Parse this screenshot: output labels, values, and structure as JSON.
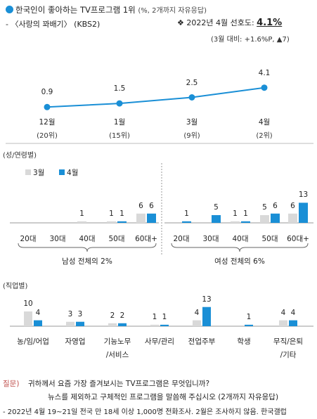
{
  "header": {
    "title": "한국인이 좋아하는 TV프로그램 1위",
    "title_note": "(%, 2개까지 자유응답)",
    "subtitle": "- 〈사랑의 꽈배기〉 (KBS2)",
    "pref_label": "❖ 2022년 4월 선호도:",
    "pref_value": "4.1%",
    "change_note": "(3월 대비: +1.6%P, ▲7)"
  },
  "chart_data": [
    {
      "type": "line",
      "categories": [
        "12월",
        "1월",
        "3월",
        "4월"
      ],
      "category_sub": [
        "(20위)",
        "(15위)",
        "(9위)",
        "(2위)"
      ],
      "values": [
        0.9,
        1.5,
        2.5,
        4.1
      ],
      "color": "#1a8fd6"
    },
    {
      "type": "bar",
      "section_label": "(성/연령별)",
      "series": [
        {
          "name": "3월",
          "color": "#d9d9d9"
        },
        {
          "name": "4월",
          "color": "#1a8fd6"
        }
      ],
      "groups": [
        {
          "label": "남성 전체의 2%",
          "categories": [
            "20대",
            "30대",
            "40대",
            "50대",
            "60대+"
          ],
          "values_3": [
            null,
            null,
            1,
            1,
            6
          ],
          "values_4": [
            null,
            null,
            null,
            1,
            6
          ]
        },
        {
          "label": "여성 전체의 6%",
          "categories": [
            "20대",
            "30대",
            "40대",
            "50대",
            "60대+"
          ],
          "values_3": [
            null,
            null,
            1,
            5,
            6
          ],
          "values_4": [
            1,
            5,
            1,
            6,
            13
          ]
        }
      ]
    },
    {
      "type": "bar",
      "section_label": "(직업별)",
      "categories": [
        "농/임/어업",
        "자영업",
        "기능노무\n/서비스",
        "사무/관리",
        "전업주부",
        "학생",
        "무직/은퇴\n/기타"
      ],
      "values_3": [
        10,
        3,
        2,
        1,
        4,
        null,
        4
      ],
      "values_4": [
        4,
        3,
        2,
        1,
        13,
        1,
        4
      ]
    }
  ],
  "footer": {
    "q_label": "질문)",
    "q_text": "귀하께서 요즘 가장 즐겨보시는 TV프로그램은 무엇입니까?",
    "q_text2": "뉴스를 제외하고 구체적인 프로그램을 말씀해 주십시오 (2개까지 자유응답)",
    "source": "- 2022년 4월 19~21일 전국 만 18세 이상 1,000명 전화조사. 2월은 조사하지 않음. 한국갤럽"
  }
}
